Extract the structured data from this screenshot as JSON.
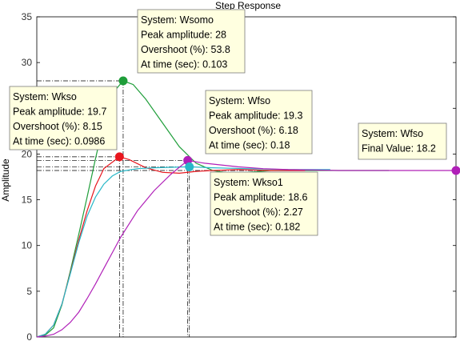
{
  "chart_data": {
    "type": "line",
    "title": "Step Response",
    "ylabel": "Amplitude",
    "xlabel": "",
    "xlim": [
      0,
      0.5
    ],
    "ylim": [
      0,
      35
    ],
    "yticks": [
      0,
      5,
      10,
      15,
      20,
      25,
      30,
      35
    ],
    "grid": false,
    "series": [
      {
        "name": "Wsomo",
        "color": "#1f9e3a",
        "x": [
          0,
          0.01,
          0.02,
          0.03,
          0.04,
          0.05,
          0.06,
          0.07,
          0.08,
          0.09,
          0.103,
          0.115,
          0.13,
          0.15,
          0.17,
          0.19,
          0.21,
          0.23,
          0.25,
          0.28,
          0.32,
          0.37,
          0.42
        ],
        "values": [
          0,
          0.2,
          1.0,
          3.5,
          7.2,
          11.2,
          15.3,
          19.5,
          23.5,
          26.6,
          28.0,
          27.6,
          26.0,
          23.4,
          20.8,
          19.0,
          18.2,
          17.9,
          18.0,
          18.2,
          18.2,
          18.2,
          18.2
        ]
      },
      {
        "name": "Wkso",
        "color": "#e8161e",
        "x": [
          0,
          0.01,
          0.02,
          0.03,
          0.04,
          0.05,
          0.06,
          0.07,
          0.08,
          0.0986,
          0.11,
          0.13,
          0.15,
          0.17,
          0.19,
          0.21,
          0.24,
          0.28,
          0.32
        ],
        "values": [
          0,
          0.3,
          1.3,
          3.6,
          7.0,
          10.6,
          13.8,
          16.5,
          18.4,
          19.7,
          19.4,
          18.5,
          18.0,
          17.9,
          18.1,
          18.2,
          18.3,
          18.2,
          18.2
        ]
      },
      {
        "name": "Wkso1",
        "color": "#27b8c8",
        "x": [
          0,
          0.01,
          0.02,
          0.03,
          0.04,
          0.05,
          0.06,
          0.07,
          0.08,
          0.09,
          0.1,
          0.12,
          0.14,
          0.16,
          0.182,
          0.21,
          0.25,
          0.3,
          0.35
        ],
        "values": [
          0,
          0.3,
          1.3,
          3.6,
          6.9,
          10.3,
          13.2,
          15.3,
          16.7,
          17.6,
          18.1,
          18.4,
          18.5,
          18.55,
          18.6,
          18.5,
          18.4,
          18.3,
          18.3
        ]
      },
      {
        "name": "Wfso",
        "color": "#b020b8",
        "x": [
          0,
          0.01,
          0.02,
          0.03,
          0.04,
          0.05,
          0.06,
          0.07,
          0.08,
          0.09,
          0.1,
          0.12,
          0.14,
          0.16,
          0.18,
          0.2,
          0.22,
          0.24,
          0.27,
          0.3,
          0.33,
          0.36,
          0.4,
          0.45,
          0.5
        ],
        "values": [
          0,
          0.1,
          0.3,
          0.8,
          1.6,
          2.7,
          4.2,
          5.8,
          7.5,
          9.2,
          10.9,
          13.8,
          16.0,
          17.8,
          19.3,
          19.0,
          18.8,
          18.6,
          18.4,
          18.3,
          18.25,
          18.2,
          18.2,
          18.2,
          18.2
        ]
      }
    ],
    "annotations": [
      {
        "series": "Wsomo",
        "x": 0.103,
        "y": 28,
        "color": "#1f9e3a",
        "lines": [
          "System: Wsomo",
          "Peak amplitude: 28",
          "Overshoot (%): 53.8",
          "At time (sec): 0.103"
        ]
      },
      {
        "series": "Wkso",
        "x": 0.0986,
        "y": 19.7,
        "color": "#e8161e",
        "lines": [
          "System: Wkso",
          "Peak amplitude: 19.7",
          "Overshoot (%): 8.15",
          "At time (sec): 0.0986"
        ]
      },
      {
        "series": "Wfso",
        "x": 0.18,
        "y": 19.3,
        "color": "#b020b8",
        "lines": [
          "System: Wfso",
          "Peak amplitude: 19.3",
          "Overshoot (%): 6.18",
          "At time (sec): 0.18"
        ]
      },
      {
        "series": "Wkso1",
        "x": 0.182,
        "y": 18.6,
        "color": "#27b8c8",
        "lines": [
          "System: Wkso1",
          "Peak amplitude: 18.6",
          "Overshoot (%): 2.27",
          "At time (sec): 0.182"
        ]
      },
      {
        "series": "Wfso",
        "x": 0.5,
        "y": 18.2,
        "color": "#b020b8",
        "lines": [
          "System: Wfso",
          "Final Value: 18.2"
        ]
      }
    ]
  }
}
